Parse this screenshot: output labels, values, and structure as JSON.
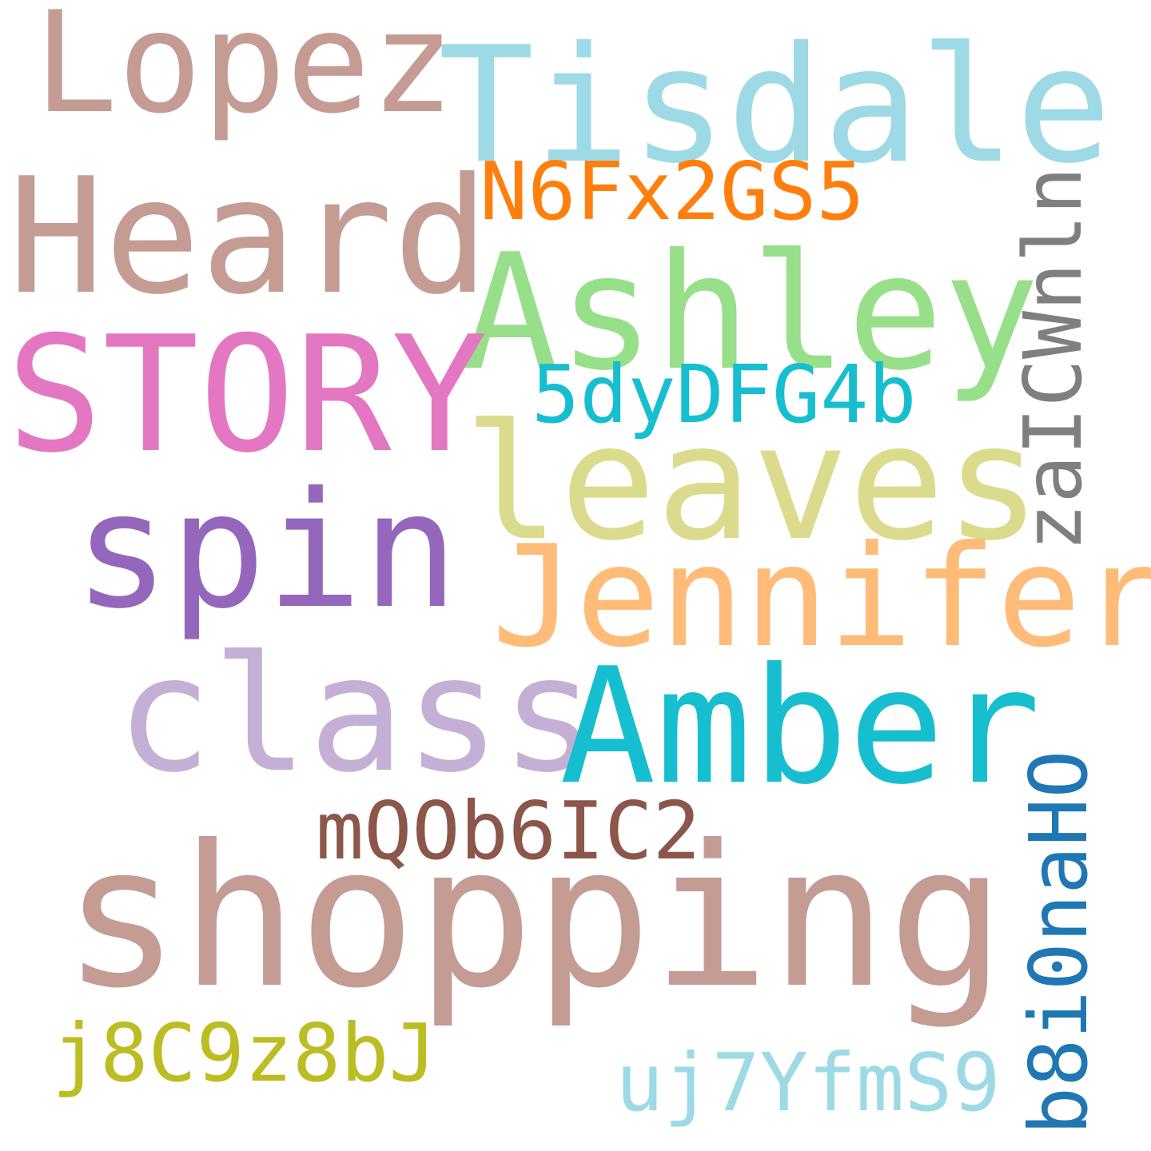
{
  "words": [
    {
      "text": "Lopez",
      "color": "#c49c94"
    },
    {
      "text": "Tisdale",
      "color": "#9edae5"
    },
    {
      "text": "N6Fx2GS5",
      "color": "#ff7f0e"
    },
    {
      "text": "Heard",
      "color": "#c49c94"
    },
    {
      "text": "Ashley",
      "color": "#98df8a"
    },
    {
      "text": "zaICWnln",
      "color": "#7f7f7f"
    },
    {
      "text": "STORY",
      "color": "#e377c2"
    },
    {
      "text": "5dyDFG4b",
      "color": "#17becf"
    },
    {
      "text": "leaves",
      "color": "#dbdb8d"
    },
    {
      "text": "spin",
      "color": "#9467bd"
    },
    {
      "text": "Jennifer",
      "color": "#ffbb78"
    },
    {
      "text": "class",
      "color": "#c5b0d5"
    },
    {
      "text": "Amber",
      "color": "#17becf"
    },
    {
      "text": "mQOb6IC2",
      "color": "#8c564b"
    },
    {
      "text": "b8i0naHO",
      "color": "#1f77b4"
    },
    {
      "text": "shopping",
      "color": "#c49c94"
    },
    {
      "text": "j8C9z8bJ",
      "color": "#bcbd22"
    },
    {
      "text": "uj7YfmS9",
      "color": "#9edae5"
    }
  ]
}
